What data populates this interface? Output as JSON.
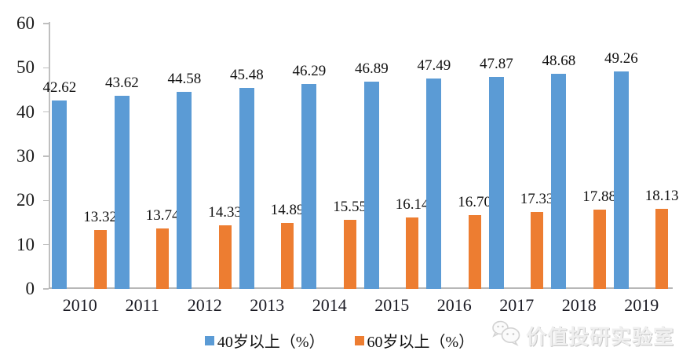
{
  "chart_data": {
    "type": "bar",
    "title": "",
    "xlabel": "",
    "ylabel": "",
    "categories": [
      "2010",
      "2011",
      "2012",
      "2013",
      "2014",
      "2015",
      "2016",
      "2017",
      "2018",
      "2019"
    ],
    "series": [
      {
        "key": "40plus",
        "name": "40岁以上（%）",
        "color": "#5B9BD5",
        "values": [
          42.62,
          43.62,
          44.58,
          45.48,
          46.29,
          46.89,
          47.49,
          47.87,
          48.68,
          49.26
        ]
      },
      {
        "key": "60plus",
        "name": "60岁以上（%）",
        "color": "#ED7D31",
        "values": [
          13.32,
          13.74,
          14.33,
          14.89,
          15.55,
          16.14,
          16.7,
          17.33,
          17.88,
          18.13
        ]
      }
    ],
    "ylim": [
      0,
      60
    ],
    "yticks": [
      0,
      10,
      20,
      30,
      40,
      50,
      60
    ],
    "grid": false,
    "legend_position": "bottom",
    "data_labels": true,
    "label_decimals": 2
  },
  "axis": {
    "line_color": "#BFBFBF"
  },
  "watermark": {
    "icon": "wechat-icon",
    "text": "价值投研实验室"
  }
}
